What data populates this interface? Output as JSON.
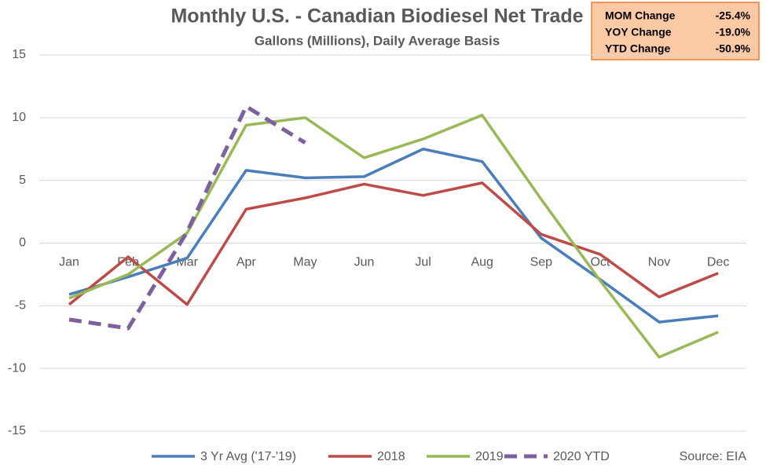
{
  "chart_data": {
    "type": "line",
    "title": "Monthly U.S. - Canadian Biodiesel Net Trade",
    "subtitle": "Gallons (Millions), Daily Average Basis",
    "source": "Source: EIA",
    "categories": [
      "Jan",
      "Feb",
      "Mar",
      "Apr",
      "May",
      "Jun",
      "Jul",
      "Aug",
      "Sep",
      "Oct",
      "Nov",
      "Dec"
    ],
    "series": [
      {
        "name": "3 Yr Avg ('17-'19)",
        "color": "#4a7ebb",
        "dashed": false,
        "values": [
          -4.1,
          -2.7,
          -1.2,
          5.8,
          5.2,
          5.3,
          7.5,
          6.5,
          0.4,
          -2.9,
          -6.3,
          -5.8
        ]
      },
      {
        "name": "2018",
        "color": "#be4b48",
        "dashed": false,
        "values": [
          -4.9,
          -1.1,
          -4.9,
          2.7,
          3.6,
          4.7,
          3.8,
          4.8,
          0.7,
          -0.9,
          -4.3,
          -2.4
        ]
      },
      {
        "name": "2019",
        "color": "#98b954",
        "dashed": false,
        "values": [
          -4.4,
          -2.5,
          0.8,
          9.4,
          10.0,
          6.8,
          8.3,
          10.2,
          3.5,
          -3.0,
          -9.1,
          -7.1
        ]
      },
      {
        "name": "2020 YTD",
        "color": "#7d60a0",
        "dashed": true,
        "values": [
          -6.1,
          -6.8,
          0.9,
          10.9,
          8.0,
          null,
          null,
          null,
          null,
          null,
          null,
          null
        ]
      }
    ],
    "ylim": [
      -15,
      15
    ],
    "yticks": [
      -15,
      -10,
      -5,
      0,
      5,
      10,
      15
    ],
    "grid": true,
    "legend": "bottom",
    "annotations": [
      {
        "label": "MOM Change",
        "value": "-25.4%"
      },
      {
        "label": "YOY Change",
        "value": "-19.0%"
      },
      {
        "label": "YTD Change",
        "value": "-50.9%"
      }
    ]
  }
}
